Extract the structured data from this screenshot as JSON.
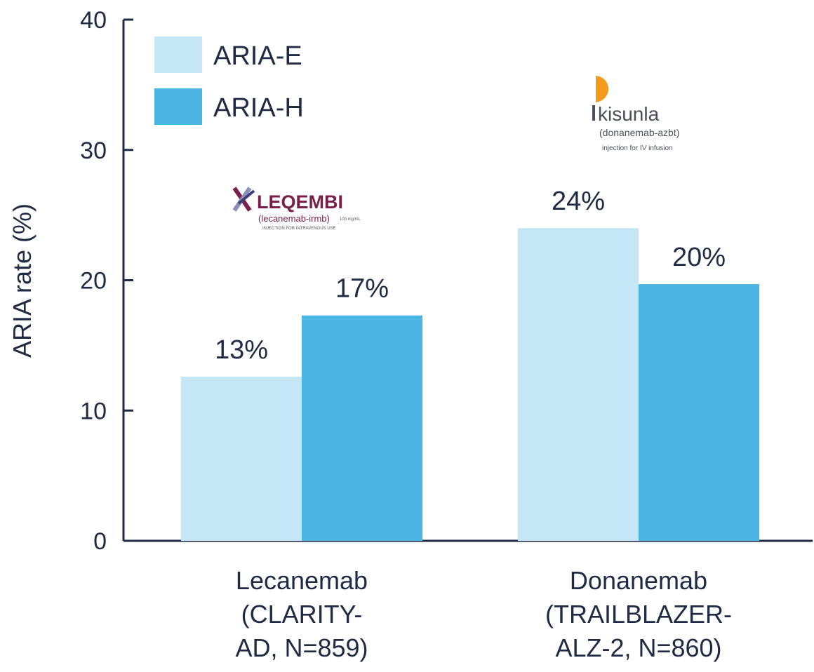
{
  "chart_data": {
    "type": "bar",
    "ylabel": "ARIA rate (%)",
    "ylim": [
      0,
      40
    ],
    "yticks": [
      "0",
      "10",
      "20",
      "30",
      "40"
    ],
    "categories": [
      [
        "Lecanemab",
        "(CLARITY-",
        "AD, N=859)"
      ],
      [
        "Donanemab",
        "(TRAILBLAZER-",
        "ALZ-2, N=860)"
      ]
    ],
    "series": [
      {
        "name": "ARIA-E",
        "color": "#c5e6f5",
        "values": [
          12.6,
          24.0
        ],
        "labels": [
          "13%",
          "24%"
        ]
      },
      {
        "name": "ARIA-H",
        "color": "#4bb5e3",
        "values": [
          17.3,
          19.7
        ],
        "labels": [
          "17%",
          "20%"
        ]
      }
    ],
    "legend_position": "top-left",
    "grid": false
  },
  "logos": {
    "lecanemab": {
      "name": "LEQEMBI",
      "generic": "(lecanemab-irmb)",
      "strength": "100 mg/mL",
      "route": "INJECTION FOR INTRAVENOUS USE"
    },
    "donanemab": {
      "name": "kisunla",
      "generic": "(donanemab-azbt)",
      "route": "injection for IV infusion"
    }
  }
}
